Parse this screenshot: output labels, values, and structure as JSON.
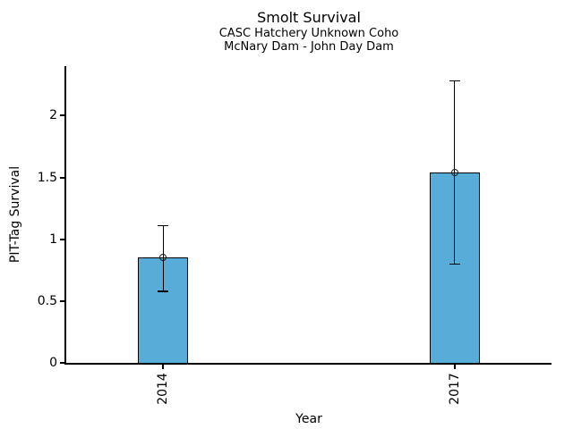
{
  "chart_data": {
    "type": "bar",
    "title": "Smolt Survival",
    "subtitle_lines": [
      "CASC Hatchery Unknown Coho",
      "McNary Dam - John Day Dam"
    ],
    "categories": [
      "2014",
      "2017"
    ],
    "values": [
      0.85,
      1.54
    ],
    "error_low": [
      0.58,
      0.8
    ],
    "error_high": [
      1.11,
      2.28
    ],
    "xlabel": "Year",
    "ylabel": "PIT-Tag Survival",
    "ylim": [
      0,
      2.4
    ],
    "yticks": [
      0,
      0.5,
      1,
      1.5,
      2
    ],
    "ytick_labels": [
      "0",
      "0.5",
      "1",
      "1.5",
      "2"
    ],
    "grid": false,
    "legend": "none",
    "bar_color": "#58ACD8",
    "bar_edge_color": "#000000",
    "error_color": "#000000",
    "marker": "open-circle",
    "background_color": "#FFFFFF",
    "text_color": "#000000"
  }
}
